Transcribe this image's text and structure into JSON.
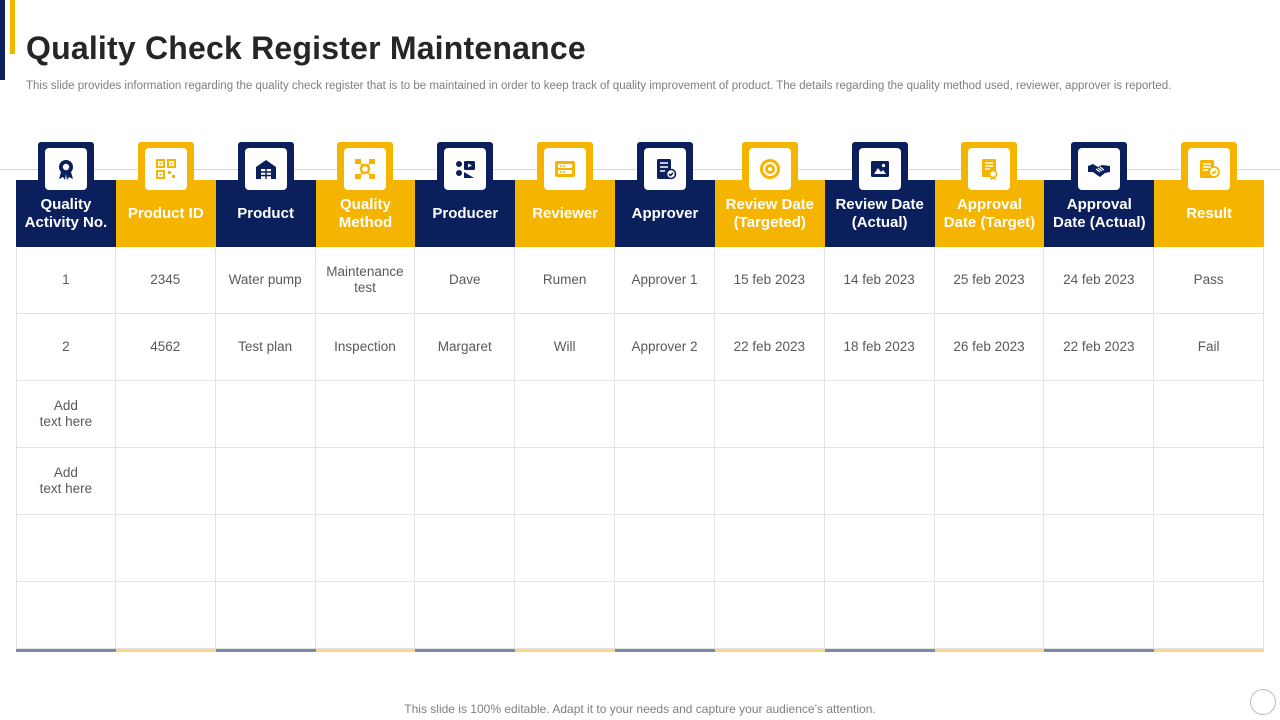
{
  "slide": {
    "title": "Quality Check Register Maintenance",
    "subtitle": "This slide provides information regarding the quality check register that is to be maintained in order to keep track of quality improvement of product. The details regarding the quality method used, reviewer, approver is reported.",
    "footer": "This slide is 100% editable. Adapt it to your needs and capture your audience’s attention."
  },
  "colors": {
    "navy": "#0b1f5c",
    "gold": "#f5b400"
  },
  "table": {
    "columns": [
      {
        "label": "Quality\nActivity No.",
        "icon": "award-badge-icon",
        "theme": "navy"
      },
      {
        "label": "Product ID",
        "icon": "qr-code-icon",
        "theme": "gold"
      },
      {
        "label": "Product",
        "icon": "warehouse-icon",
        "theme": "navy"
      },
      {
        "label": "Quality\nMethod",
        "icon": "process-gear-icon",
        "theme": "gold"
      },
      {
        "label": "Producer",
        "icon": "video-producer-icon",
        "theme": "navy"
      },
      {
        "label": "Reviewer",
        "icon": "review-rating-icon",
        "theme": "gold"
      },
      {
        "label": "Approver",
        "icon": "checklist-approve-icon",
        "theme": "navy"
      },
      {
        "label": "Review Date\n(Targeted)",
        "icon": "target-icon",
        "theme": "gold"
      },
      {
        "label": "Review Date\n(Actual)",
        "icon": "image-frame-icon",
        "theme": "navy"
      },
      {
        "label": "Approval\nDate (Target)",
        "icon": "certificate-icon",
        "theme": "gold"
      },
      {
        "label": "Approval\nDate (Actual)",
        "icon": "handshake-icon",
        "theme": "navy"
      },
      {
        "label": "Result",
        "icon": "result-document-icon",
        "theme": "gold"
      }
    ],
    "rows": [
      [
        "1",
        "2345",
        "Water pump",
        "Maintenance\ntest",
        "Dave",
        "Rumen",
        "Approver  1",
        "15 feb 2023",
        "14 feb 2023",
        "25 feb 2023",
        "24 feb 2023",
        "Pass"
      ],
      [
        "2",
        "4562",
        "Test plan",
        "Inspection",
        "Margaret",
        "Will",
        "Approver  2",
        "22 feb 2023",
        "18 feb 2023",
        "26 feb 2023",
        "22 feb 2023",
        "Fail"
      ],
      [
        "Add\ntext here",
        "",
        "",
        "",
        "",
        "",
        "",
        "",
        "",
        "",
        "",
        ""
      ],
      [
        "Add\ntext here",
        "",
        "",
        "",
        "",
        "",
        "",
        "",
        "",
        "",
        "",
        ""
      ],
      [
        "",
        "",
        "",
        "",
        "",
        "",
        "",
        "",
        "",
        "",
        "",
        ""
      ],
      [
        "",
        "",
        "",
        "",
        "",
        "",
        "",
        "",
        "",
        "",
        "",
        ""
      ]
    ]
  }
}
